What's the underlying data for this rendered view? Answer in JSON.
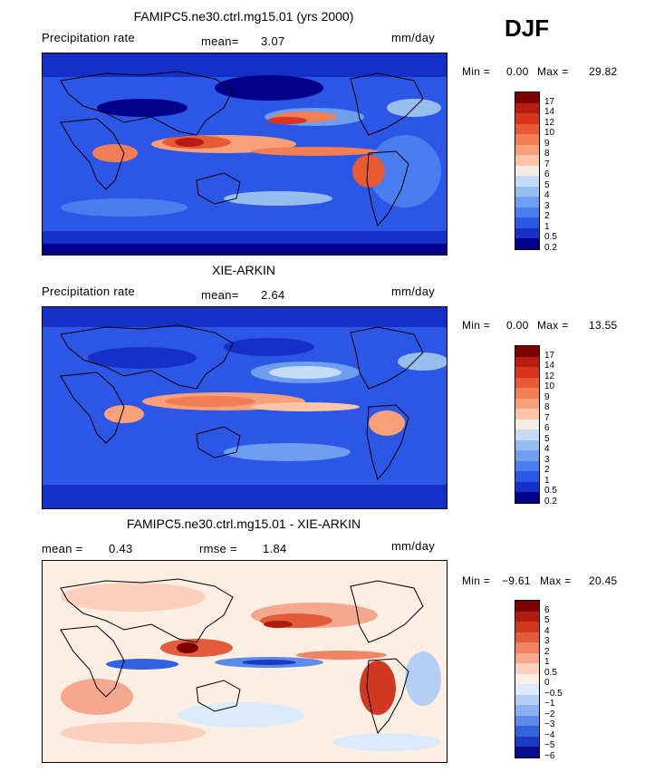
{
  "season": "DJF",
  "panels": [
    {
      "title": "FAMIPC5.ne30.ctrl.mg15.01 (yrs 2000)",
      "left_label": "Precipitation rate",
      "stat1_label": "mean=",
      "stat1_value": "3.07",
      "stat2_label": "",
      "stat2_value": "",
      "units": "mm/day",
      "min_label": "Min =",
      "min_value": "0.00",
      "max_label": "Max =",
      "max_value": "29.82",
      "levels": [
        "17",
        "14",
        "12",
        "10",
        "9",
        "8",
        "7",
        "6",
        "5",
        "4",
        "3",
        "2",
        "1",
        "0.5",
        "0.2"
      ]
    },
    {
      "title": "XIE-ARKIN",
      "left_label": "Precipitation rate",
      "stat1_label": "mean=",
      "stat1_value": "2.64",
      "stat2_label": "",
      "stat2_value": "",
      "units": "mm/day",
      "min_label": "Min =",
      "min_value": "0.00",
      "max_label": "Max =",
      "max_value": "13.55",
      "levels": [
        "17",
        "14",
        "12",
        "10",
        "9",
        "8",
        "7",
        "6",
        "5",
        "4",
        "3",
        "2",
        "1",
        "0.5",
        "0.2"
      ]
    },
    {
      "title": "FAMIPC5.ne30.ctrl.mg15.01 - XIE-ARKIN",
      "left_label": "",
      "stat1_label": "mean =",
      "stat1_value": "0.43",
      "stat2_label": "rmse =",
      "stat2_value": "1.84",
      "units": "mm/day",
      "min_label": "Min =",
      "min_value": "−9.61",
      "max_label": "Max =",
      "max_value": "20.45",
      "levels": [
        "6",
        "5",
        "4",
        "3",
        "2",
        "1",
        "0.5",
        "0",
        "−0.5",
        "−1",
        "−2",
        "−3",
        "−4",
        "−5",
        "−6"
      ]
    }
  ],
  "colors": {
    "precip": [
      "#7f0000",
      "#b81c10",
      "#d8341e",
      "#e85a34",
      "#f27e55",
      "#f7a07a",
      "#fbc6a8",
      "#f6ece6",
      "#c6dbf5",
      "#96bff0",
      "#6d9ef0",
      "#4a7df0",
      "#2c56e6",
      "#1530c8",
      "#00008b"
    ],
    "diff": [
      "#7f0000",
      "#b01c10",
      "#d03820",
      "#e25c3c",
      "#f08464",
      "#f6a88e",
      "#fcd0bc",
      "#fdeee4",
      "#dcebfb",
      "#b4cff3",
      "#8ab0ef",
      "#5c8ce8",
      "#3461df",
      "#1b3cc2",
      "#0a0a8c"
    ]
  }
}
